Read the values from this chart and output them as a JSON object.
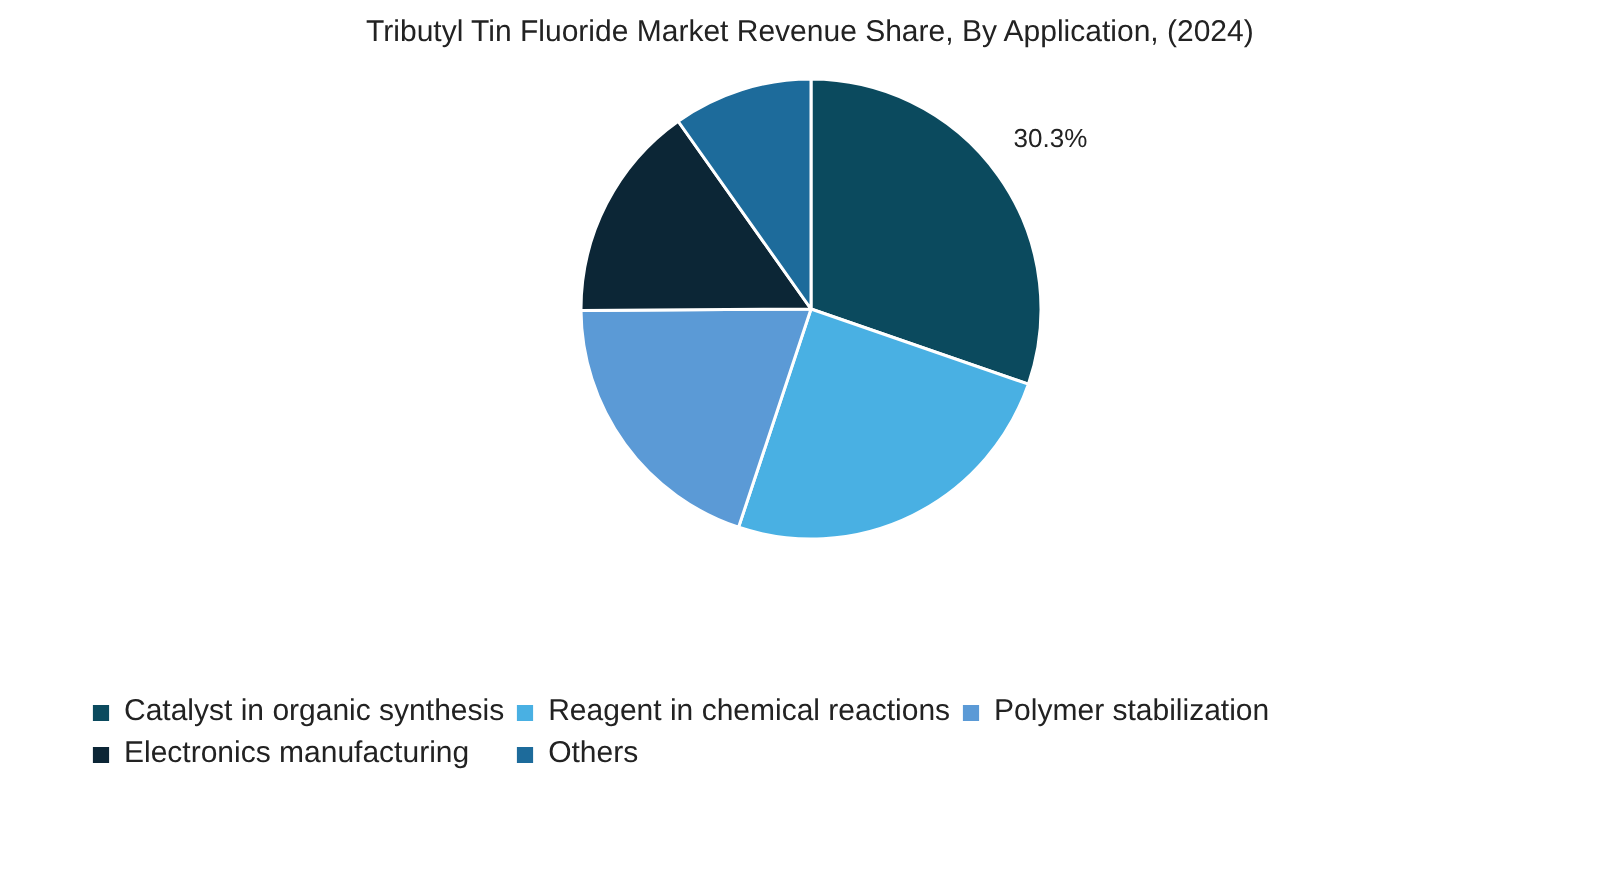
{
  "chart_data": {
    "type": "pie",
    "title": "Tributyl Tin Fluoride Market Revenue Share, By Application, (2024)",
    "categories": [
      "Catalyst in organic synthesis",
      "Reagent in chemical reactions",
      "Polymer stabilization",
      "Electronics manufacturing",
      "Others"
    ],
    "values": [
      30.3,
      24.8,
      19.8,
      15.3,
      9.8
    ],
    "colors": [
      "#0b4a5e",
      "#49b0e3",
      "#5b9ad6",
      "#0c2636",
      "#1d6b9b"
    ],
    "value_labels": [
      "30.3%",
      null,
      null,
      null,
      null
    ],
    "legend": "bottom"
  }
}
